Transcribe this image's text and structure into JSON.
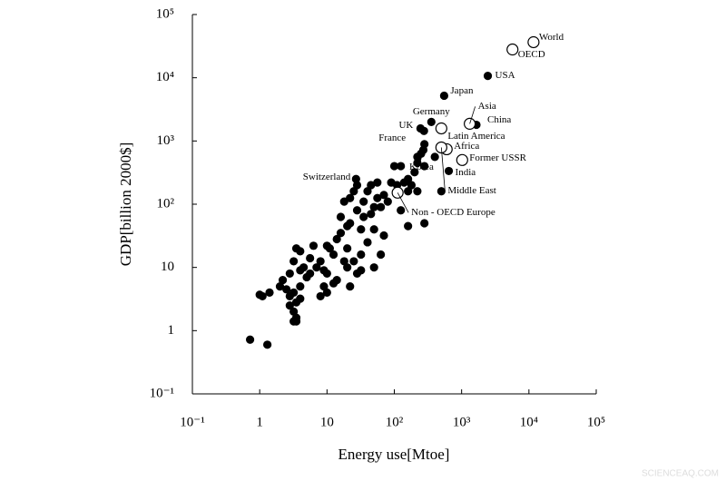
{
  "chart_data": {
    "type": "scatter",
    "xlabel": "Energy use[Mtoe]",
    "ylabel": "GDP[billion 2000$]",
    "log_x": true,
    "log_y": true,
    "xlim": [
      0.1,
      100000
    ],
    "ylim": [
      0.1,
      100000
    ],
    "xticks": [
      {
        "value": 0.1,
        "label": "10⁻¹"
      },
      1,
      10,
      {
        "value": 100,
        "label": "10²"
      },
      {
        "value": 1000,
        "label": "10³"
      },
      {
        "value": 10000,
        "label": "10⁴"
      },
      {
        "value": 100000,
        "label": "10⁵"
      }
    ],
    "yticks": [
      {
        "value": 0.1,
        "label": "10⁻¹"
      },
      1,
      10,
      {
        "value": 100,
        "label": "10²"
      },
      {
        "value": 1000,
        "label": "10³"
      },
      {
        "value": 10000,
        "label": "10⁴"
      },
      {
        "value": 100000,
        "label": "10⁵"
      }
    ],
    "series": [
      {
        "marker": "filled",
        "color": "#000000",
        "x": [
          2450,
          550,
          355,
          245,
          276,
          1660,
          645,
          270,
          27,
          0.72,
          1.3,
          1.0,
          1.1,
          1.4,
          2,
          2.2,
          2.5,
          2.8,
          2.8,
          3.2,
          3.5,
          3.2,
          3.2,
          3.5,
          4,
          3.5,
          3.5,
          4,
          3.2,
          2.8,
          4,
          4.5,
          5,
          5.6,
          6.3,
          7,
          8,
          9,
          9,
          10,
          10,
          11,
          12.5,
          12.5,
          14,
          14,
          16,
          16,
          18,
          18,
          20,
          20,
          22,
          22,
          22,
          25,
          25,
          28,
          28,
          28,
          32,
          32,
          35,
          35,
          40,
          40,
          45,
          45,
          50,
          50,
          56,
          63,
          63,
          70,
          70,
          80,
          90,
          100,
          110,
          125,
          125,
          140,
          160,
          160,
          180,
          200,
          220,
          250,
          220,
          280,
          280,
          220,
          280,
          400,
          500,
          160,
          10,
          5.6,
          4,
          8,
          32,
          50,
          20,
          56
        ],
        "y": [
          10700,
          5200,
          2000,
          1580,
          1440,
          1800,
          335,
          720,
          250,
          0.72,
          0.6,
          3.7,
          3.5,
          4,
          5,
          6.3,
          4.5,
          3.5,
          2.5,
          1.4,
          1.6,
          2,
          4,
          2.8,
          3.2,
          1.4,
          20,
          18,
          12.5,
          8,
          9,
          10,
          7,
          8,
          22,
          10,
          12.5,
          9,
          5,
          4,
          22,
          20,
          16,
          5.6,
          6.3,
          28,
          35,
          63,
          12.5,
          110,
          10,
          20,
          5,
          50,
          125,
          160,
          12.5,
          8,
          80,
          200,
          16,
          40,
          110,
          63,
          160,
          25,
          70,
          200,
          90,
          40,
          125,
          16,
          90,
          140,
          32,
          110,
          220,
          400,
          200,
          80,
          400,
          220,
          250,
          45,
          200,
          320,
          450,
          630,
          560,
          400,
          890,
          160,
          50,
          560,
          160,
          160,
          8,
          14,
          5,
          3.5,
          9,
          10,
          45,
          220
        ],
        "labels": [
          "USA",
          "Japan",
          "Germany",
          "UK",
          "France",
          "China",
          "India",
          "Korea",
          "Switzerland"
        ]
      },
      {
        "marker": "open",
        "color": "#000000",
        "x": [
          11700,
          5700,
          500,
          1320,
          600,
          1020,
          500,
          112
        ],
        "y": [
          36500,
          28000,
          1580,
          1870,
          740,
          500,
          790,
          152
        ],
        "labels": [
          "World",
          "OECD",
          "Latin America",
          "Asia",
          "Africa",
          "Former USSR",
          "Middle East",
          "Non - OECD Europe"
        ]
      }
    ],
    "watermark": "SCIENCEAQ.COM"
  }
}
